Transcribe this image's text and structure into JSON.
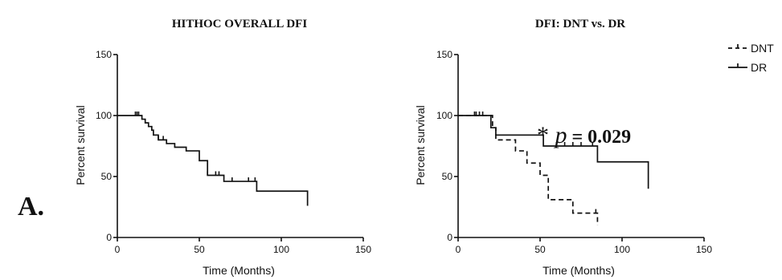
{
  "panel_label": "A.",
  "annotation": {
    "prefix": "* ",
    "italic": "p",
    "rest": " = 0.029"
  },
  "legend": {
    "dnt_label": "DNT",
    "dr_label": "DR"
  },
  "chart_data": [
    {
      "type": "line",
      "title": "HITHOC OVERALL DFI",
      "xlabel": "Time (Months)",
      "ylabel": "Percent survival",
      "xlim": [
        0,
        150
      ],
      "ylim": [
        0,
        150
      ],
      "xticks": [
        0,
        50,
        100,
        150
      ],
      "yticks": [
        0,
        50,
        100,
        150
      ],
      "series": [
        {
          "style": "solid",
          "x": [
            0,
            13,
            15,
            17,
            19,
            21,
            22,
            25,
            30,
            35,
            42,
            50,
            55,
            65,
            85,
            116
          ],
          "y": [
            100,
            100,
            97,
            94,
            91,
            88,
            84,
            80,
            77,
            74,
            71,
            63,
            51,
            46,
            38,
            26
          ],
          "censor_x": [
            11,
            12,
            13,
            25,
            28,
            55,
            60,
            62,
            70,
            80,
            84
          ]
        }
      ]
    },
    {
      "type": "line",
      "title": "DFI: DNT vs. DR",
      "xlabel": "Time (Months)",
      "ylabel": "Percent survival",
      "xlim": [
        0,
        150
      ],
      "ylim": [
        0,
        150
      ],
      "xticks": [
        0,
        50,
        100,
        150
      ],
      "yticks": [
        0,
        50,
        100,
        150
      ],
      "series": [
        {
          "name": "DNT",
          "style": "dashed",
          "x": [
            0,
            18,
            21,
            23,
            35,
            42,
            50,
            55,
            70,
            85
          ],
          "y": [
            100,
            100,
            90,
            80,
            71,
            61,
            51,
            31,
            20,
            10
          ],
          "censor_x": [
            10,
            15,
            84
          ]
        },
        {
          "name": "DR",
          "style": "solid",
          "x": [
            0,
            13,
            20,
            23,
            52,
            85,
            116
          ],
          "y": [
            100,
            100,
            90,
            84,
            75,
            62,
            40
          ],
          "censor_x": [
            11,
            13,
            60,
            65,
            70,
            75,
            82
          ]
        }
      ]
    }
  ]
}
